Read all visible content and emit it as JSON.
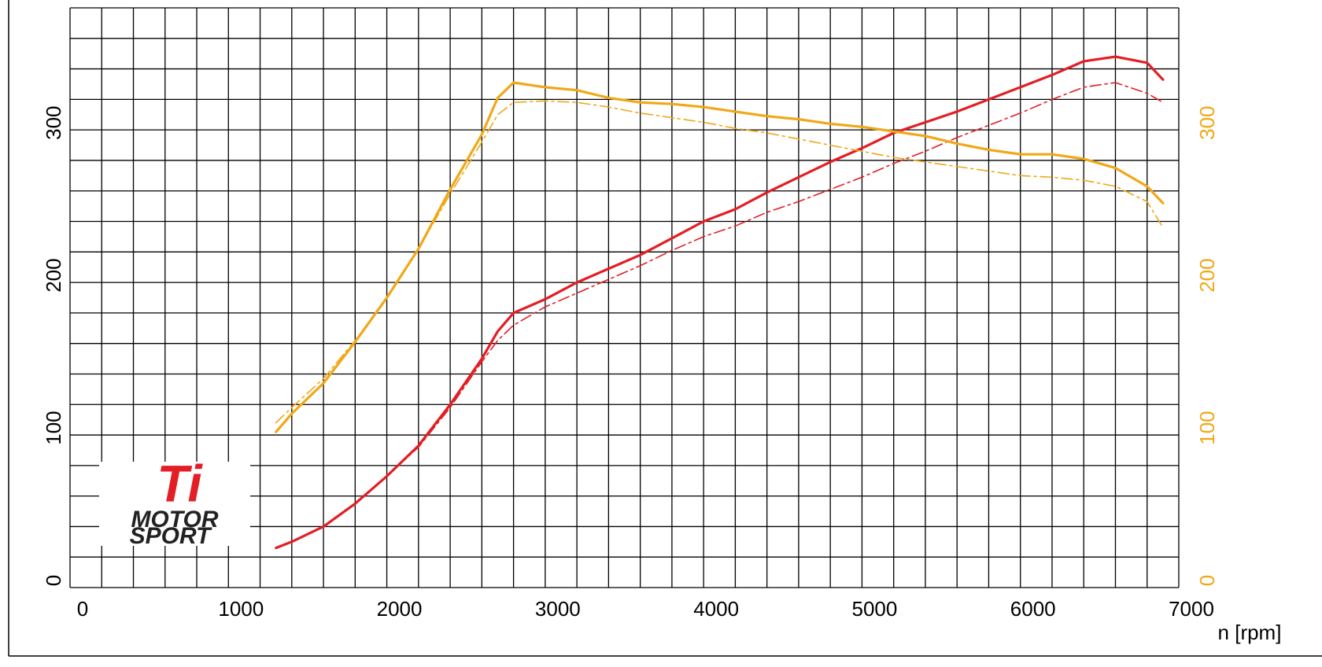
{
  "chart_data": {
    "type": "line",
    "x_label": "n [rpm]",
    "x": [
      1300,
      1400,
      1600,
      1800,
      2000,
      2200,
      2400,
      2600,
      2700,
      2800,
      3000,
      3200,
      3400,
      3600,
      3800,
      4000,
      4200,
      4400,
      4600,
      4800,
      5000,
      5200,
      5400,
      5600,
      5800,
      6000,
      6200,
      6400,
      6600,
      6800,
      6900
    ],
    "series": [
      {
        "color": "#e31e24",
        "style": "solid",
        "axis": "y",
        "values": [
          26,
          30,
          40,
          55,
          73,
          93,
          120,
          150,
          168,
          180,
          189,
          200,
          209,
          218,
          229,
          240,
          248,
          259,
          269,
          279,
          288,
          298,
          305,
          312,
          320,
          328,
          336,
          345,
          348,
          344,
          333
        ]
      },
      {
        "color": "#e31e24",
        "style": "dashdot",
        "axis": "y",
        "values": [
          26,
          30,
          40,
          55,
          73,
          92,
          118,
          148,
          162,
          172,
          184,
          193,
          202,
          211,
          221,
          230,
          237,
          246,
          253,
          261,
          269,
          278,
          286,
          295,
          303,
          311,
          320,
          328,
          331,
          324,
          318
        ]
      },
      {
        "color": "#f0a818",
        "style": "solid",
        "axis": "y2",
        "values": [
          102,
          114,
          134,
          161,
          190,
          222,
          261,
          297,
          321,
          331,
          328,
          326,
          321,
          318,
          317,
          315,
          312,
          309,
          307,
          304,
          302,
          299,
          296,
          291,
          287,
          284,
          284,
          281,
          275,
          263,
          252
        ]
      },
      {
        "color": "#f0a818",
        "style": "dashdot",
        "axis": "y2",
        "values": [
          108,
          118,
          137,
          162,
          190,
          222,
          258,
          292,
          310,
          318,
          319,
          318,
          315,
          311,
          308,
          305,
          301,
          298,
          294,
          290,
          286,
          282,
          279,
          276,
          273,
          270,
          269,
          267,
          263,
          253,
          236
        ]
      }
    ],
    "xlim": [
      0,
      7000
    ],
    "xticks": [
      0,
      1000,
      2000,
      3000,
      4000,
      5000,
      6000,
      7000
    ],
    "xgrid": [
      0,
      200,
      400,
      600,
      800,
      1000,
      1200,
      1400,
      1600,
      1800,
      2000,
      2200,
      2400,
      2600,
      2800,
      3000,
      3200,
      3400,
      3600,
      3800,
      4000,
      4200,
      4400,
      4600,
      4800,
      5000,
      5200,
      5400,
      5600,
      5800,
      6000,
      6200,
      6400,
      6600,
      6800,
      7000
    ],
    "ylim": [
      0,
      380
    ],
    "yticks": [
      0,
      100,
      200,
      300
    ],
    "ygrid": [
      0,
      20,
      40,
      60,
      80,
      100,
      120,
      140,
      160,
      180,
      200,
      220,
      240,
      260,
      280,
      300,
      320,
      340,
      360,
      380
    ],
    "y2lim": [
      0,
      380
    ],
    "y2ticks": [
      0,
      100,
      200,
      300
    ],
    "y2color": "#f0a818",
    "grid": true,
    "annotations": [
      "Ti",
      "MOTOR",
      "SPORT"
    ]
  }
}
